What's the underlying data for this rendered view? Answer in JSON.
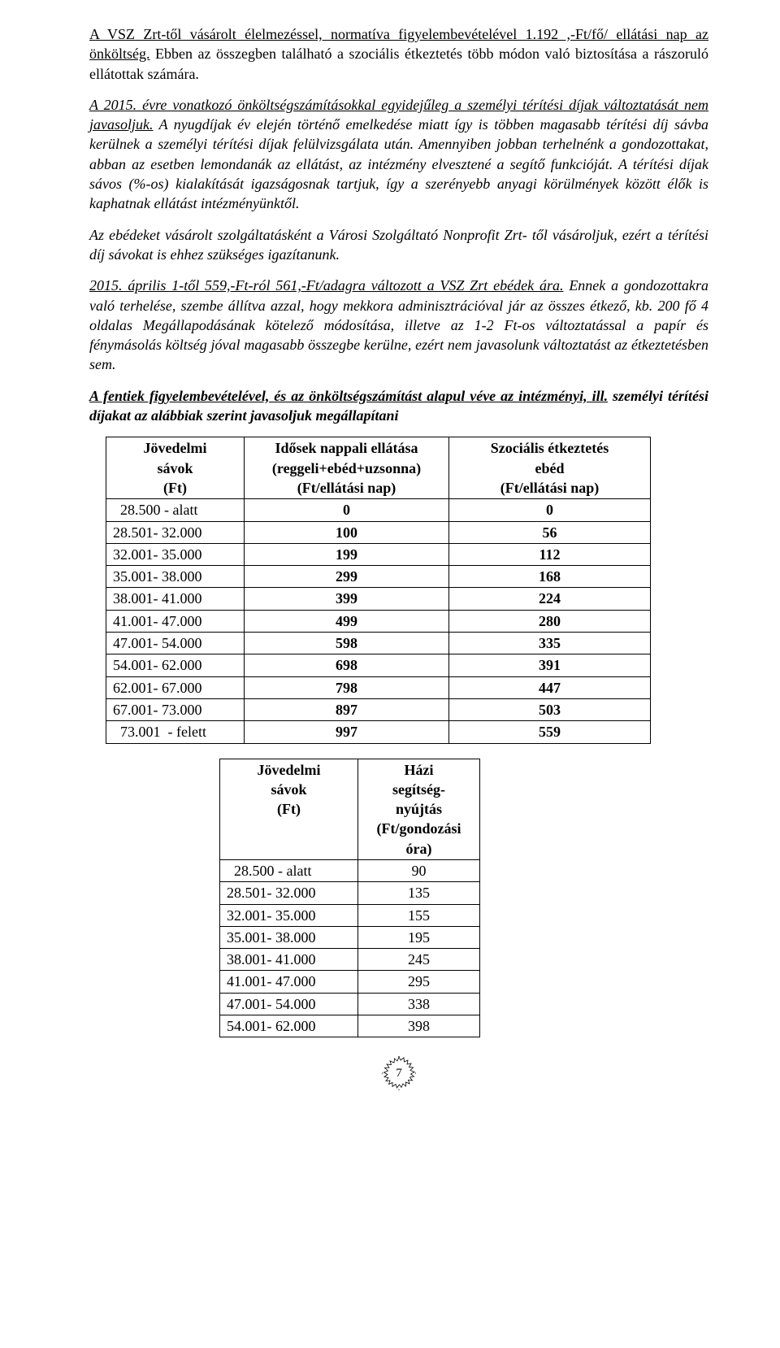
{
  "paragraphs": {
    "p1a": "A VSZ Zrt-től vásárolt élelmezéssel, normatíva figyelembevételével 1.192 ,-Ft/fő/ ellátási nap az önköltség.",
    "p1b": " Ebben az összegben található a szociális étkeztetés több módon való biztosítása a rászoruló ellátottak számára.",
    "p2a": "A 2015. évre vonatkozó önköltségszámításokkal egyidejűleg a személyi térítési díjak változtatását nem javasoljuk.",
    "p2b": " A nyugdíjak év elején történő emelkedése miatt így is többen magasabb térítési díj sávba kerülnek a személyi térítési díjak felülvizsgálata után. Amennyiben jobban terhelnénk a gondozottakat, abban az esetben lemondanák az ellátást, az intézmény elvesztené a segítő funkcióját. A térítési díjak sávos (%-os) kialakítását igazságosnak tartjuk, így a szerényebb anyagi körülmények között élők is kaphatnak ellátást intézményünktől.",
    "p3": "Az ebédeket vásárolt szolgáltatásként a Városi Szolgáltató Nonprofit Zrt- től vásároljuk, ezért a térítési díj sávokat is ehhez szükséges igazítanunk.",
    "p4a": "2015. április 1-től 559,-Ft-ról 561,-Ft/adagra változott a VSZ Zrt ebédek ára.",
    "p4b": " Ennek a gondozottakra való terhelése, szembe állítva azzal, hogy mekkora adminisztrációval jár az összes étkező, kb. 200 fő 4 oldalas Megállapodásának kötelező módosítása, illetve az 1-2 Ft-os változtatással a papír és fénymásolás költség jóval magasabb összegbe kerülne, ezért nem javasolunk változtatást az étkeztetésben sem.",
    "p5a": "A fentiek figyelembevételével, és az önköltségszámítást alapul véve az intézményi, ill.",
    "p5b": " személyi térítési díjakat az alábbiak szerint javasoljuk megállapítani"
  },
  "table1": {
    "headers": {
      "c1l1": "Jövedelmi",
      "c1l2": "sávok",
      "c1l3": "(Ft)",
      "c2l1": "Idősek nappali ellátása",
      "c2l2": "(reggeli+ebéd+uzsonna)",
      "c2l3": "(Ft/ellátási nap)",
      "c3l1": "Szociális étkeztetés",
      "c3l2": "ebéd",
      "c3l3": "(Ft/ellátási nap)"
    },
    "rows": [
      {
        "c1": "  28.500 - alatt",
        "c2": "0",
        "c3": "0"
      },
      {
        "c1": "28.501- 32.000",
        "c2": "100",
        "c3": "56"
      },
      {
        "c1": "32.001- 35.000",
        "c2": "199",
        "c3": "112"
      },
      {
        "c1": "35.001- 38.000",
        "c2": "299",
        "c3": "168"
      },
      {
        "c1": "38.001- 41.000",
        "c2": "399",
        "c3": "224"
      },
      {
        "c1": "41.001- 47.000",
        "c2": "499",
        "c3": "280"
      },
      {
        "c1": "47.001- 54.000",
        "c2": "598",
        "c3": "335"
      },
      {
        "c1": "54.001- 62.000",
        "c2": "698",
        "c3": "391"
      },
      {
        "c1": "62.001- 67.000",
        "c2": "798",
        "c3": "447"
      },
      {
        "c1": "67.001- 73.000",
        "c2": "897",
        "c3": "503"
      },
      {
        "c1": "  73.001  - felett",
        "c2": "997",
        "c3": "559"
      }
    ]
  },
  "table2": {
    "headers": {
      "c1l1": "Jövedelmi",
      "c1l2": "sávok",
      "c1l3": "(Ft)",
      "c2l1": "Házi",
      "c2l2": "segítség-",
      "c2l3": "nyújtás",
      "c2l4": "(Ft/gondozási",
      "c2l5": "óra)"
    },
    "rows": [
      {
        "c1": "  28.500 - alatt",
        "c2": "90"
      },
      {
        "c1": "28.501- 32.000",
        "c2": "135"
      },
      {
        "c1": "32.001- 35.000",
        "c2": "155"
      },
      {
        "c1": "35.001- 38.000",
        "c2": "195"
      },
      {
        "c1": "38.001- 41.000",
        "c2": "245"
      },
      {
        "c1": "41.001- 47.000",
        "c2": "295"
      },
      {
        "c1": "47.001- 54.000",
        "c2": "338"
      },
      {
        "c1": "54.001- 62.000",
        "c2": "398"
      }
    ]
  },
  "page": "7"
}
